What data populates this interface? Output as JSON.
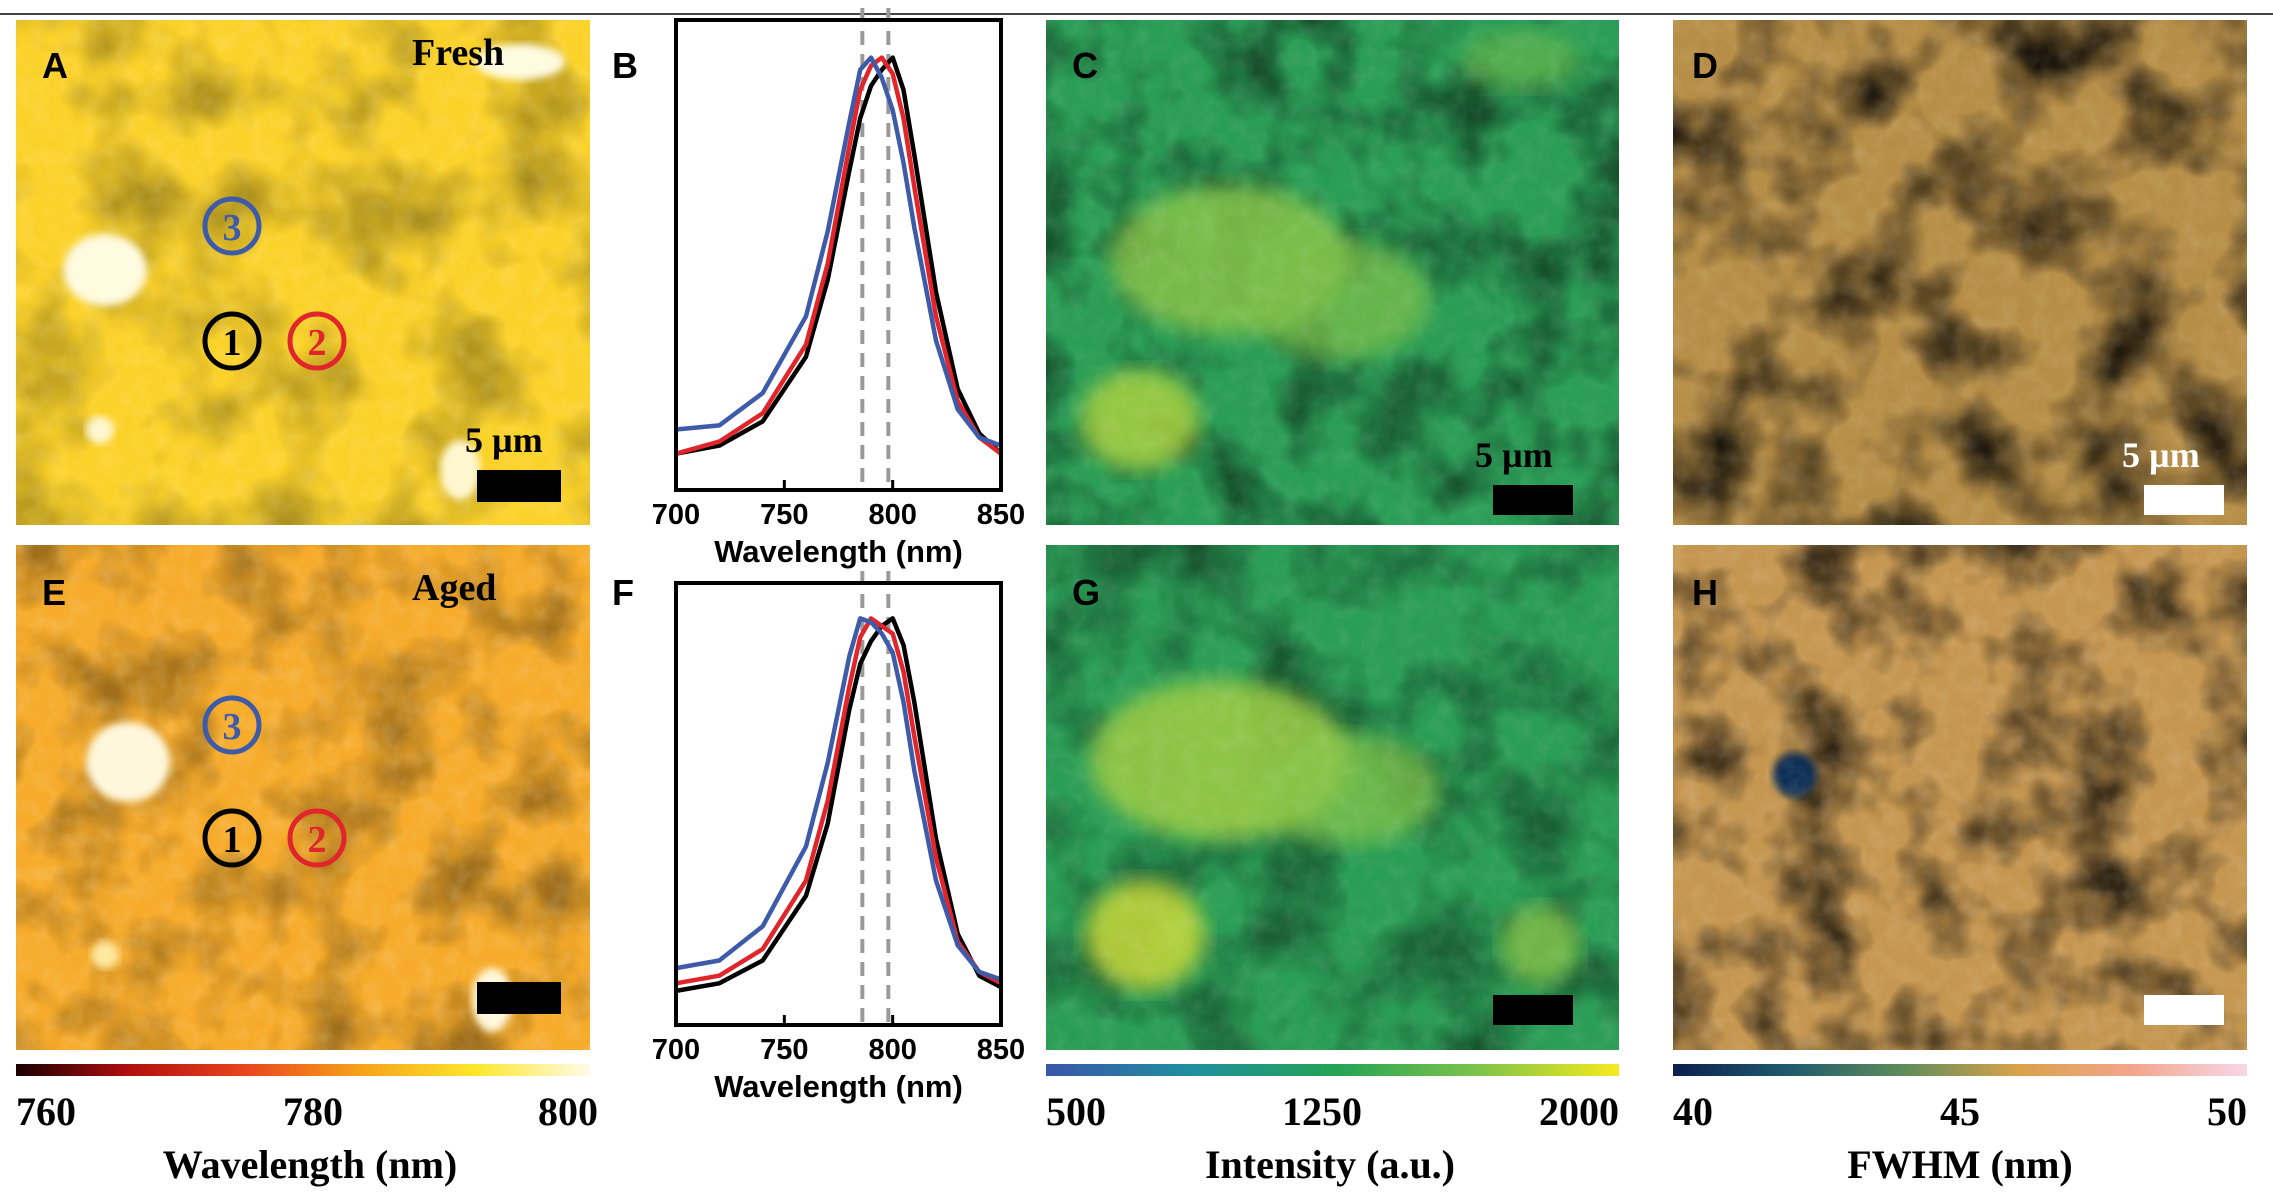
{
  "panels": {
    "A": {
      "letter": "A",
      "condition": "Fresh",
      "scale_label": "5 µm"
    },
    "B": {
      "letter": "B"
    },
    "C": {
      "letter": "C",
      "scale_label": "5 µm"
    },
    "D": {
      "letter": "D",
      "scale_label": "5 µm"
    },
    "E": {
      "letter": "E",
      "condition": "Aged"
    },
    "F": {
      "letter": "F"
    },
    "G": {
      "letter": "G"
    },
    "H": {
      "letter": "H"
    }
  },
  "markers": [
    {
      "label": "1",
      "color": "#000000"
    },
    {
      "label": "2",
      "color": "#e0252b"
    },
    {
      "label": "3",
      "color": "#3d5ba9"
    }
  ],
  "colorbars": [
    {
      "id": "wavelength",
      "title": "Wavelength (nm)",
      "ticks": [
        "760",
        "780",
        "800"
      ],
      "stops": [
        "#1a0000",
        "#b30f0f",
        "#e8461e",
        "#f6a21a",
        "#fde62c",
        "#fffbe8"
      ]
    },
    {
      "id": "intensity",
      "title": "Intensity (a.u.)",
      "ticks": [
        "500",
        "1250",
        "2000"
      ],
      "stops": [
        "#3a55a8",
        "#1f8fa0",
        "#22a355",
        "#7cc24a",
        "#f7ea1e"
      ]
    },
    {
      "id": "fwhm",
      "title": "FWHM (nm)",
      "ticks": [
        "40",
        "45",
        "50"
      ],
      "stops": [
        "#0a1f4d",
        "#1f5a6e",
        "#5d8c5a",
        "#d8a249",
        "#f3a58c",
        "#f7d7e6"
      ]
    }
  ],
  "chart_data": [
    {
      "panel": "B",
      "type": "line",
      "xlabel": "Wavelength (nm)",
      "xlim": [
        700,
        850
      ],
      "xticks": [
        "700",
        "750",
        "800",
        "850"
      ],
      "reference_lines": [
        786,
        798
      ],
      "series": [
        {
          "color": "#000000",
          "x": [
            700,
            720,
            740,
            760,
            770,
            780,
            785,
            790,
            795,
            800,
            805,
            810,
            820,
            830,
            840,
            850
          ],
          "y": [
            0.02,
            0.04,
            0.1,
            0.26,
            0.45,
            0.72,
            0.85,
            0.93,
            0.97,
            1.0,
            0.92,
            0.76,
            0.42,
            0.18,
            0.07,
            0.02
          ]
        },
        {
          "color": "#e0252b",
          "x": [
            700,
            720,
            740,
            760,
            770,
            780,
            785,
            790,
            795,
            800,
            805,
            810,
            820,
            830,
            840,
            850
          ],
          "y": [
            0.02,
            0.05,
            0.12,
            0.29,
            0.49,
            0.78,
            0.92,
            0.98,
            1.0,
            0.96,
            0.85,
            0.68,
            0.36,
            0.15,
            0.06,
            0.02
          ]
        },
        {
          "color": "#3d5ba9",
          "x": [
            700,
            720,
            740,
            760,
            770,
            780,
            785,
            790,
            795,
            800,
            805,
            810,
            820,
            830,
            840,
            850
          ],
          "y": [
            0.08,
            0.09,
            0.17,
            0.36,
            0.57,
            0.84,
            0.97,
            1.0,
            0.95,
            0.87,
            0.74,
            0.58,
            0.3,
            0.13,
            0.06,
            0.04
          ]
        }
      ]
    },
    {
      "panel": "F",
      "type": "line",
      "xlabel": "Wavelength (nm)",
      "xlim": [
        700,
        850
      ],
      "xticks": [
        "700",
        "750",
        "800",
        "850"
      ],
      "reference_lines": [
        786,
        798
      ],
      "series": [
        {
          "color": "#000000",
          "x": [
            700,
            720,
            740,
            760,
            770,
            780,
            785,
            790,
            795,
            800,
            805,
            810,
            820,
            830,
            840,
            850
          ],
          "y": [
            0.02,
            0.04,
            0.1,
            0.27,
            0.46,
            0.76,
            0.88,
            0.94,
            0.98,
            1.0,
            0.93,
            0.78,
            0.42,
            0.17,
            0.06,
            0.03
          ]
        },
        {
          "color": "#e0252b",
          "x": [
            700,
            720,
            740,
            760,
            770,
            780,
            785,
            790,
            795,
            800,
            805,
            810,
            820,
            830,
            840,
            850
          ],
          "y": [
            0.04,
            0.06,
            0.13,
            0.31,
            0.52,
            0.82,
            0.95,
            1.0,
            0.98,
            0.96,
            0.86,
            0.69,
            0.37,
            0.15,
            0.07,
            0.04
          ]
        },
        {
          "color": "#3d5ba9",
          "x": [
            700,
            720,
            740,
            760,
            770,
            780,
            785,
            790,
            795,
            800,
            805,
            810,
            820,
            830,
            840,
            850
          ],
          "y": [
            0.08,
            0.1,
            0.19,
            0.4,
            0.62,
            0.9,
            1.0,
            0.99,
            0.96,
            0.91,
            0.78,
            0.6,
            0.31,
            0.14,
            0.07,
            0.05
          ]
        }
      ]
    }
  ]
}
